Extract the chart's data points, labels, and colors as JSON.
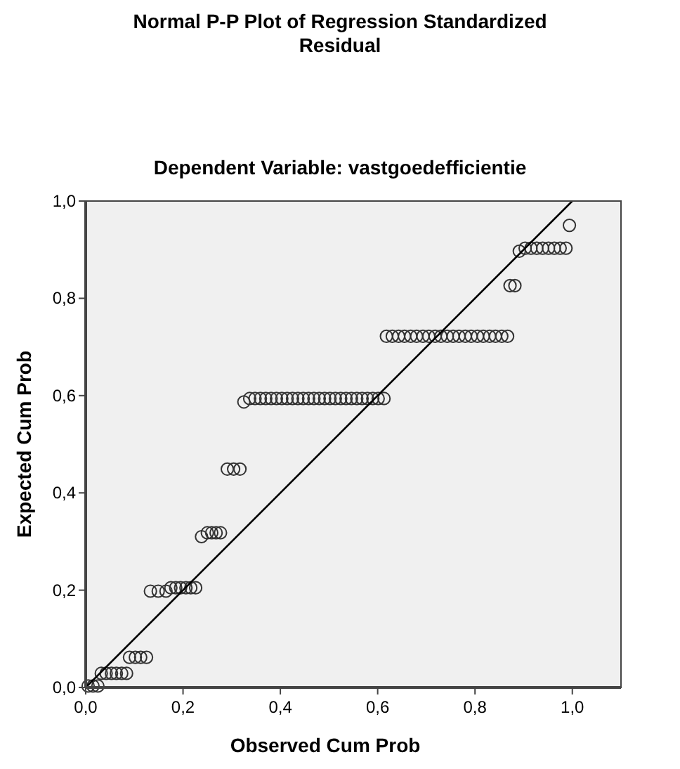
{
  "chart_data": {
    "type": "scatter",
    "title": "Normal P-P Plot of Regression Standardized Residual",
    "subtitle": "Dependent Variable: vastgoedefficientie",
    "xlabel": "Observed Cum Prob",
    "ylabel": "Expected Cum Prob",
    "xlim": [
      0,
      1.1
    ],
    "ylim": [
      0,
      1
    ],
    "xticks": [
      {
        "value": 0,
        "label": "0,0"
      },
      {
        "value": 0.2,
        "label": "0,2"
      },
      {
        "value": 0.4,
        "label": "0,4"
      },
      {
        "value": 0.6,
        "label": "0,6"
      },
      {
        "value": 0.8,
        "label": "0,8"
      },
      {
        "value": 1,
        "label": "1,0"
      }
    ],
    "yticks": [
      {
        "value": 0,
        "label": "0,0"
      },
      {
        "value": 0.2,
        "label": "0,2"
      },
      {
        "value": 0.4,
        "label": "0,4"
      },
      {
        "value": 0.6,
        "label": "0,6"
      },
      {
        "value": 0.8,
        "label": "0,8"
      },
      {
        "value": 1,
        "label": "1,0"
      }
    ],
    "grid": false,
    "series": [
      {
        "marker": "circle",
        "color": "#333333",
        "x": [
          0.005,
          0.015,
          0.025,
          0.032,
          0.042,
          0.053,
          0.063,
          0.074,
          0.084,
          0.09,
          0.102,
          0.113,
          0.125,
          0.133,
          0.149,
          0.165,
          0.175,
          0.185,
          0.195,
          0.206,
          0.216,
          0.226,
          0.238,
          0.25,
          0.259,
          0.268,
          0.277,
          0.291,
          0.304,
          0.317,
          0.325,
          0.337,
          0.348,
          0.359,
          0.37,
          0.381,
          0.392,
          0.403,
          0.414,
          0.425,
          0.436,
          0.447,
          0.458,
          0.469,
          0.48,
          0.491,
          0.502,
          0.513,
          0.524,
          0.535,
          0.546,
          0.557,
          0.568,
          0.579,
          0.59,
          0.601,
          0.613,
          0.618,
          0.63,
          0.643,
          0.655,
          0.668,
          0.68,
          0.693,
          0.705,
          0.718,
          0.73,
          0.743,
          0.755,
          0.767,
          0.78,
          0.792,
          0.805,
          0.817,
          0.83,
          0.842,
          0.855,
          0.867,
          0.872,
          0.882,
          0.891,
          0.903,
          0.915,
          0.927,
          0.939,
          0.951,
          0.963,
          0.975,
          0.987,
          0.994
        ],
        "values": [
          0.003,
          0.003,
          0.003,
          0.029,
          0.029,
          0.029,
          0.029,
          0.029,
          0.029,
          0.062,
          0.062,
          0.062,
          0.062,
          0.198,
          0.198,
          0.198,
          0.205,
          0.205,
          0.205,
          0.205,
          0.205,
          0.205,
          0.31,
          0.318,
          0.318,
          0.318,
          0.318,
          0.449,
          0.449,
          0.449,
          0.587,
          0.594,
          0.594,
          0.594,
          0.594,
          0.594,
          0.594,
          0.594,
          0.594,
          0.594,
          0.594,
          0.594,
          0.594,
          0.594,
          0.594,
          0.594,
          0.594,
          0.594,
          0.594,
          0.594,
          0.594,
          0.594,
          0.594,
          0.594,
          0.594,
          0.594,
          0.594,
          0.722,
          0.722,
          0.722,
          0.722,
          0.722,
          0.722,
          0.722,
          0.722,
          0.722,
          0.722,
          0.722,
          0.722,
          0.722,
          0.722,
          0.722,
          0.722,
          0.722,
          0.722,
          0.722,
          0.722,
          0.722,
          0.826,
          0.826,
          0.897,
          0.903,
          0.903,
          0.903,
          0.903,
          0.903,
          0.903,
          0.903,
          0.903,
          0.95
        ]
      },
      {
        "type": "line",
        "marker": "none",
        "color": "#000000",
        "x": [
          0,
          1
        ],
        "values": [
          0,
          1
        ]
      }
    ]
  }
}
